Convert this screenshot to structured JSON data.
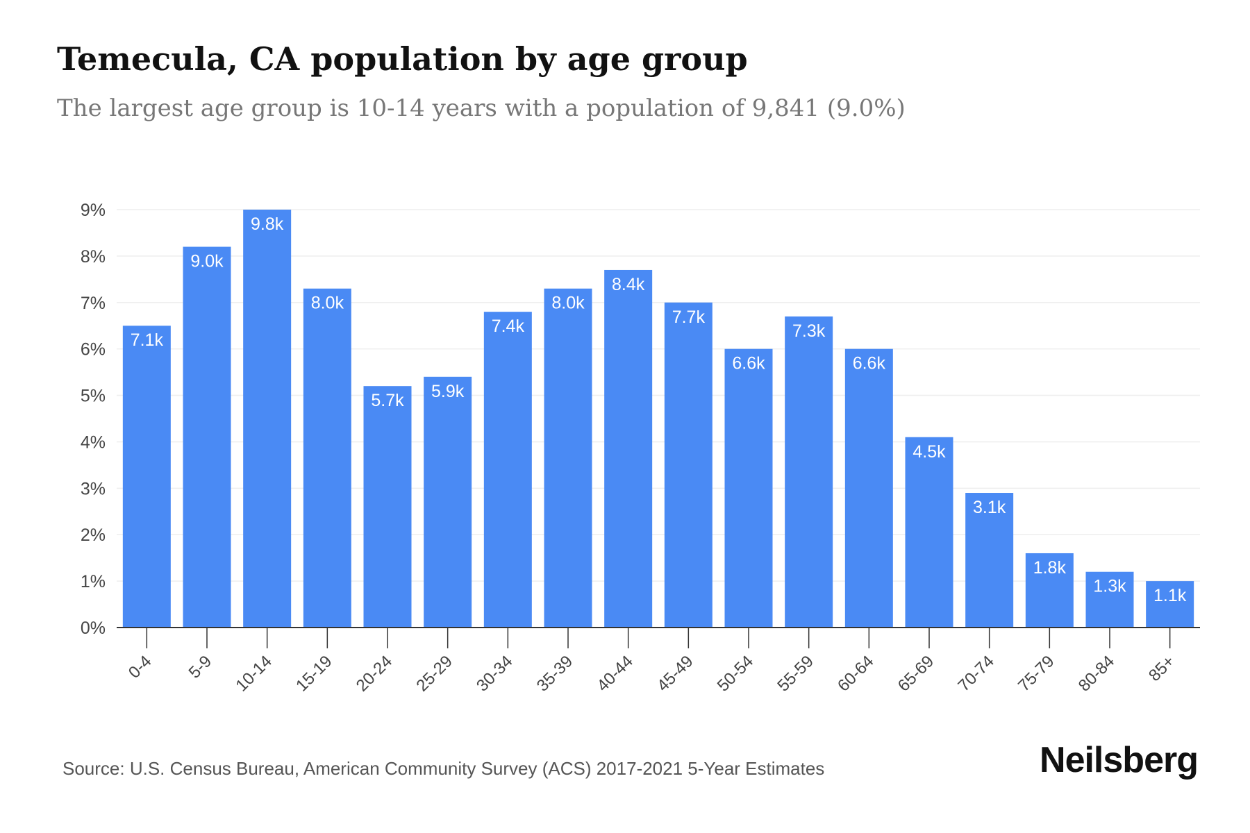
{
  "header": {
    "title": "Temecula, CA population by age group",
    "subtitle": "The largest age group is 10-14 years with a population of 9,841 (9.0%)"
  },
  "footer": {
    "source": "Source: U.S. Census Bureau, American Community Survey (ACS) 2017-2021 5-Year Estimates",
    "brand": "Neilsberg"
  },
  "colors": {
    "bar": "#4a8af4",
    "grid": "#eeeeee",
    "axis": "#333333",
    "tick_text": "#444444"
  },
  "chart_data": {
    "type": "bar",
    "categories": [
      "0-4",
      "5-9",
      "10-14",
      "15-19",
      "20-24",
      "25-29",
      "30-34",
      "35-39",
      "40-44",
      "45-49",
      "50-54",
      "55-59",
      "60-64",
      "65-69",
      "70-74",
      "75-79",
      "80-84",
      "85+"
    ],
    "values": [
      6.5,
      8.2,
      9.0,
      7.3,
      5.2,
      5.4,
      6.8,
      7.3,
      7.7,
      7.0,
      6.0,
      6.7,
      6.0,
      4.1,
      2.9,
      1.6,
      1.2,
      1.0
    ],
    "data_labels": [
      "7.1k",
      "9.0k",
      "9.8k",
      "8.0k",
      "5.7k",
      "5.9k",
      "7.4k",
      "8.0k",
      "8.4k",
      "7.7k",
      "6.6k",
      "7.3k",
      "6.6k",
      "4.5k",
      "3.1k",
      "1.8k",
      "1.3k",
      "1.1k"
    ],
    "ylim": [
      0,
      9
    ],
    "yticks": [
      "0%",
      "1%",
      "2%",
      "3%",
      "4%",
      "5%",
      "6%",
      "7%",
      "8%",
      "9%"
    ],
    "grid": true,
    "legend": false
  }
}
